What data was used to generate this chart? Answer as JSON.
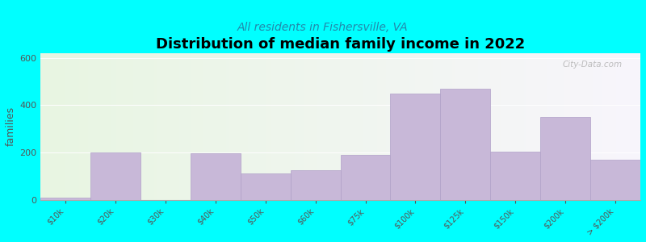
{
  "title": "Distribution of median family income in 2022",
  "subtitle": "All residents in Fishersville, VA",
  "ylabel": "families",
  "categories": [
    "$10k",
    "$20k",
    "$30k",
    "$40k",
    "$50k",
    "$60k",
    "$75k",
    "$100k",
    "$125k",
    "$150k",
    "$200k",
    "> $200k"
  ],
  "values": [
    10,
    200,
    0,
    195,
    110,
    125,
    190,
    450,
    470,
    205,
    350,
    170
  ],
  "bar_color": "#c8b8d8",
  "bar_edgecolor": "#b0a0c8",
  "bg_color": "#00ffff",
  "ylim": [
    0,
    620
  ],
  "yticks": [
    0,
    200,
    400,
    600
  ],
  "title_fontsize": 13,
  "subtitle_fontsize": 10,
  "ylabel_fontsize": 9,
  "watermark": "City-Data.com"
}
